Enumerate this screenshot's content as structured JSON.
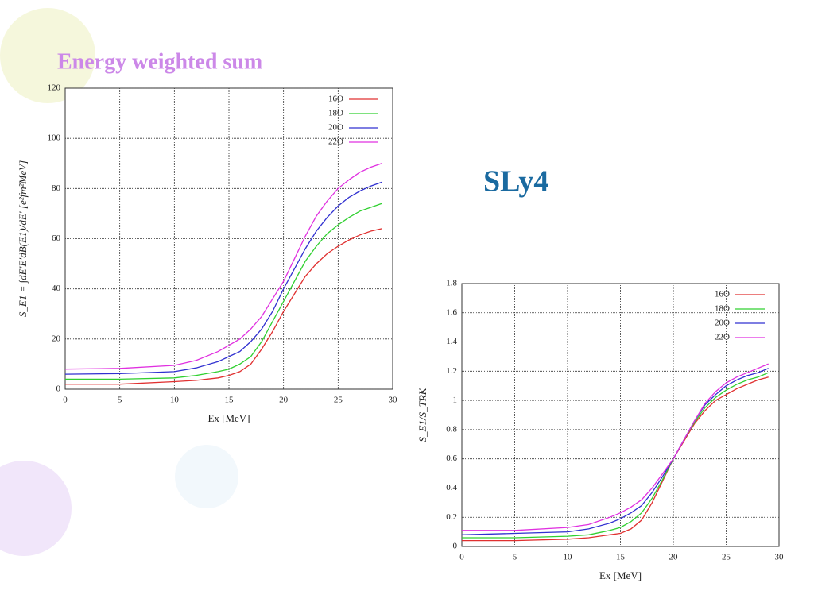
{
  "slide": {
    "title": "Energy weighted sum",
    "label": "SLy4"
  },
  "chart_data": [
    {
      "type": "line",
      "xlabel": "Ex [MeV]",
      "ylabel": "S_E1 = ∫dE′E′dB(E1)/dE′ [e²fm²MeV]",
      "x": [
        0,
        5,
        10,
        12,
        14,
        15,
        16,
        17,
        18,
        19,
        20,
        21,
        22,
        23,
        24,
        25,
        26,
        27,
        28,
        29
      ],
      "series": [
        {
          "name": "16O",
          "color": "#e03030",
          "values": [
            2,
            2,
            3,
            3.5,
            4.5,
            5.5,
            7,
            10,
            16,
            23,
            31,
            38,
            45,
            50,
            54,
            57,
            59.5,
            61.5,
            63,
            64
          ]
        },
        {
          "name": "18O",
          "color": "#30d030",
          "values": [
            4,
            4,
            4.5,
            5.5,
            7,
            8,
            10,
            13,
            19,
            27,
            35,
            43,
            51,
            57,
            62,
            65.5,
            68.5,
            71,
            72.5,
            74
          ]
        },
        {
          "name": "20O",
          "color": "#3030d0",
          "values": [
            6,
            6.2,
            7,
            8.5,
            11,
            13,
            15,
            19,
            24,
            31,
            40,
            48,
            56,
            63,
            68.5,
            73,
            76.5,
            79,
            81,
            82.5
          ]
        },
        {
          "name": "22O",
          "color": "#e030e0",
          "values": [
            8,
            8.3,
            9.5,
            11.5,
            15,
            17.5,
            20,
            24,
            29,
            36,
            43,
            52,
            61,
            69,
            75,
            80,
            83.5,
            86.5,
            88.5,
            90
          ]
        }
      ],
      "xlim": [
        0,
        30
      ],
      "ylim": [
        0,
        120
      ],
      "xticks": [
        0,
        5,
        10,
        15,
        20,
        25,
        30
      ],
      "yticks": [
        0,
        20,
        40,
        60,
        80,
        100,
        120
      ],
      "grid": true,
      "legend": "upper right"
    },
    {
      "type": "line",
      "xlabel": "Ex [MeV]",
      "ylabel": "S_E1/S_TRK",
      "x": [
        0,
        5,
        10,
        12,
        14,
        15,
        16,
        17,
        18,
        19,
        20,
        21,
        22,
        23,
        24,
        25,
        26,
        27,
        28,
        29
      ],
      "series": [
        {
          "name": "16O",
          "color": "#e03030",
          "values": [
            0.04,
            0.04,
            0.05,
            0.06,
            0.08,
            0.09,
            0.12,
            0.18,
            0.3,
            0.45,
            0.6,
            0.72,
            0.84,
            0.93,
            1.0,
            1.04,
            1.08,
            1.11,
            1.14,
            1.16
          ]
        },
        {
          "name": "18O",
          "color": "#30d030",
          "values": [
            0.06,
            0.06,
            0.07,
            0.08,
            0.11,
            0.13,
            0.17,
            0.23,
            0.33,
            0.46,
            0.6,
            0.73,
            0.85,
            0.95,
            1.02,
            1.07,
            1.11,
            1.14,
            1.16,
            1.19
          ]
        },
        {
          "name": "20O",
          "color": "#3030d0",
          "values": [
            0.08,
            0.09,
            0.1,
            0.12,
            0.16,
            0.19,
            0.23,
            0.28,
            0.37,
            0.48,
            0.6,
            0.73,
            0.86,
            0.97,
            1.04,
            1.1,
            1.14,
            1.17,
            1.19,
            1.22
          ]
        },
        {
          "name": "22O",
          "color": "#e030e0",
          "values": [
            0.11,
            0.11,
            0.13,
            0.15,
            0.2,
            0.23,
            0.27,
            0.32,
            0.4,
            0.5,
            0.6,
            0.73,
            0.86,
            0.98,
            1.06,
            1.12,
            1.16,
            1.19,
            1.22,
            1.25
          ]
        }
      ],
      "xlim": [
        0,
        30
      ],
      "ylim": [
        0,
        1.8
      ],
      "xticks": [
        0,
        5,
        10,
        15,
        20,
        25,
        30
      ],
      "yticks": [
        0,
        0.2,
        0.4,
        0.6,
        0.8,
        1,
        1.2,
        1.4,
        1.6,
        1.8
      ],
      "grid": true,
      "legend": "upper right"
    }
  ]
}
